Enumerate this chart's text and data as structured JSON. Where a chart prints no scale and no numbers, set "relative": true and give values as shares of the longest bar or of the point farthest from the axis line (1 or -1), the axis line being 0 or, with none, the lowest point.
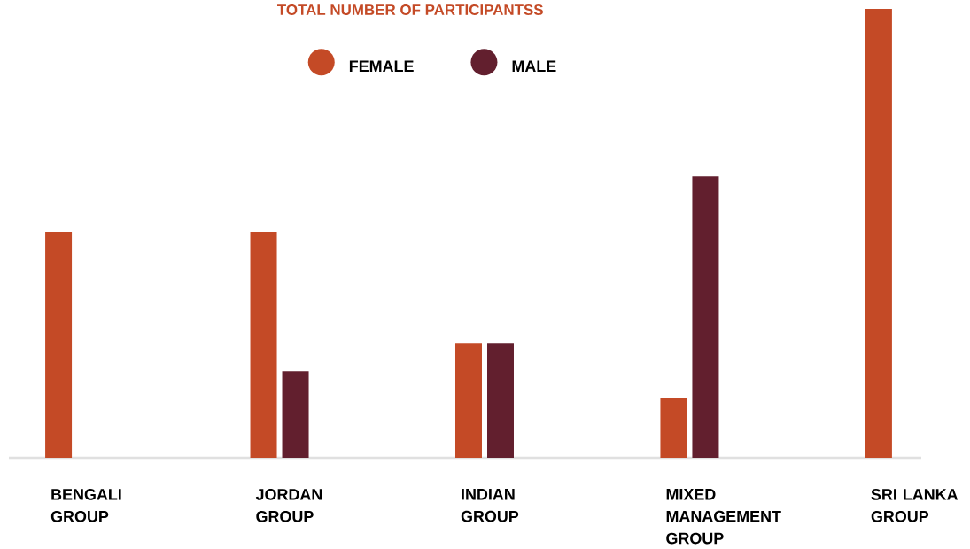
{
  "chart_data": {
    "type": "bar",
    "title": "TOTAL NUMBER OF PARTICIPANTSS",
    "relative": true,
    "legend": "top",
    "categories": [
      "BENGALI GROUP",
      "JORDAN GROUP",
      "INDIAN GROUP",
      "MIXED MANAGEMENT GROUP",
      "SRI LANKA GROUP"
    ],
    "series": [
      {
        "name": "FEMALE",
        "color": "#c44a26",
        "values": [
          0.503,
          0.503,
          0.256,
          0.132,
          1
        ]
      },
      {
        "name": "MALE",
        "color": "#621f2e",
        "values": [
          null,
          0.193,
          0.256,
          0.627,
          null
        ]
      }
    ]
  }
}
